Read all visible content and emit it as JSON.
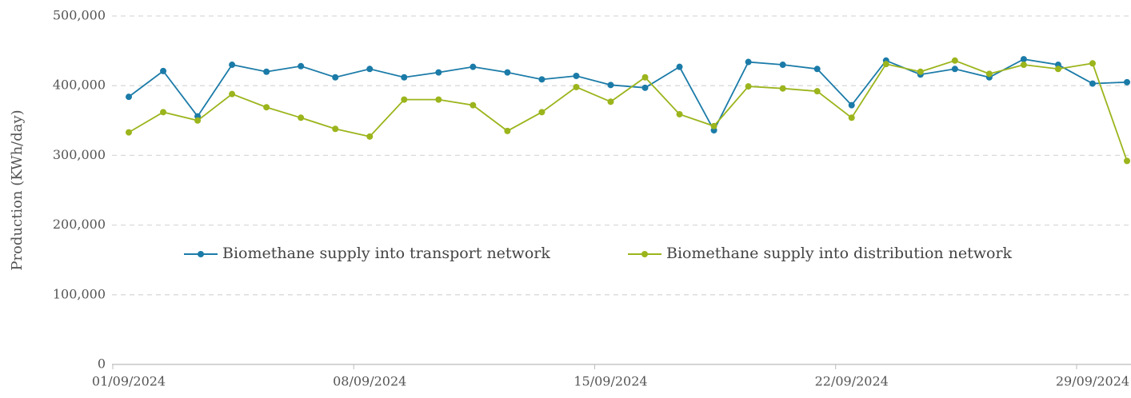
{
  "chart_data": {
    "type": "line",
    "y_label": "Production (KWh/day)",
    "categories": [
      "01/09/2024",
      null,
      null,
      null,
      null,
      null,
      null,
      "08/09/2024",
      null,
      null,
      null,
      null,
      null,
      null,
      "15/09/2024",
      null,
      null,
      null,
      null,
      null,
      null,
      "22/09/2024",
      null,
      null,
      null,
      null,
      null,
      null,
      "29/09/2024",
      null
    ],
    "series": [
      {
        "name": "Biomethane supply into transport network",
        "color": "#1b7ba8",
        "values": [
          384000,
          421000,
          356000,
          430000,
          420000,
          428000,
          412000,
          424000,
          412000,
          419000,
          427000,
          419000,
          409000,
          414000,
          401000,
          397000,
          427000,
          336000,
          434000,
          430000,
          424000,
          372000,
          436000,
          416000,
          424000,
          412000,
          438000,
          430000,
          403000,
          405000
        ]
      },
      {
        "name": "Biomethane supply into distribution network",
        "color": "#9bb51c",
        "values": [
          333000,
          362000,
          350000,
          388000,
          369000,
          354000,
          338000,
          327000,
          380000,
          380000,
          372000,
          335000,
          362000,
          398000,
          377000,
          412000,
          359000,
          342000,
          399000,
          396000,
          392000,
          354000,
          431000,
          420000,
          436000,
          417000,
          430000,
          424000,
          432000,
          292000
        ]
      }
    ],
    "ylim": [
      0,
      500000
    ],
    "yticks": [
      0,
      {
        "value": 100000,
        "label": "100,000"
      },
      {
        "value": 200000,
        "label": "200,000"
      },
      {
        "value": 300000,
        "label": "300,000"
      },
      {
        "value": 400000,
        "label": "400,000"
      },
      {
        "value": 500000,
        "label": "500,000"
      }
    ],
    "grid": true,
    "legend": "center"
  }
}
